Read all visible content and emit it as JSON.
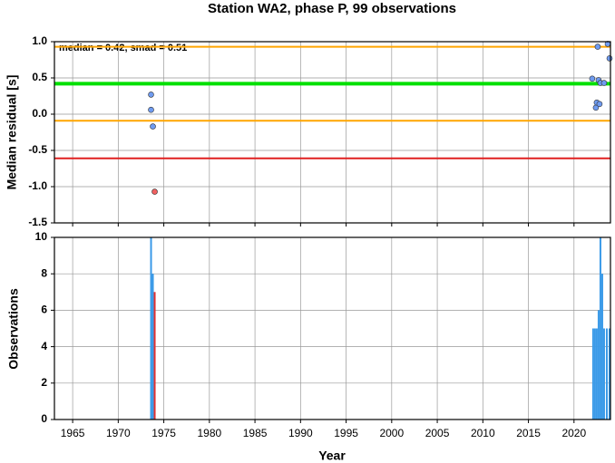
{
  "chart_data": [
    {
      "type": "scatter",
      "title": "Station WA2, phase P, 99 observations",
      "ylabel": "Median residual [s]",
      "annotation": "median = 0.42, smad = 0.51",
      "xlim": [
        1963,
        2024
      ],
      "xticks": [
        1965,
        1970,
        1975,
        1980,
        1985,
        1990,
        1995,
        2000,
        2005,
        2010,
        2015,
        2020
      ],
      "ylim": [
        -1.5,
        1.0
      ],
      "yticks": [
        {
          "value": -1.5,
          "label": "-1.5"
        },
        {
          "value": -1,
          "label": "-1.0"
        },
        {
          "value": -0.5,
          "label": "-0.5"
        },
        {
          "value": 0,
          "label": "0.0"
        },
        {
          "value": 0.5,
          "label": "0.5"
        },
        {
          "value": 1,
          "label": "1.0"
        }
      ],
      "grid": true,
      "hlines": [
        {
          "value": 0.93,
          "color": "#ffa500"
        },
        {
          "value": 0.42,
          "color": "#00e000"
        },
        {
          "value": -0.09,
          "color": "#ffa500"
        },
        {
          "value": -0.61,
          "color": "#e02020"
        }
      ],
      "series": [
        {
          "color": "#6f9bf0",
          "x": [
            1973.6,
            1973.6,
            1973.8,
            2022.0,
            2022.4,
            2022.5,
            2022.6,
            2022.8,
            2022.7,
            2022.9,
            2023.3,
            2023.7,
            2023.9
          ],
          "values": [
            0.27,
            0.06,
            -0.17,
            0.49,
            0.09,
            0.16,
            0.93,
            0.14,
            0.47,
            0.43,
            0.43,
            0.97,
            0.77
          ]
        },
        {
          "color": "#f06060",
          "x": [
            1974.0
          ],
          "values": [
            -1.07
          ]
        }
      ]
    },
    {
      "type": "bar",
      "xlabel": "Year",
      "ylabel": "Observations",
      "xlim": [
        1963,
        2024
      ],
      "xticks": [
        1965,
        1970,
        1975,
        1980,
        1985,
        1990,
        1995,
        2000,
        2005,
        2010,
        2015,
        2020
      ],
      "ylim": [
        0,
        10
      ],
      "yticks": [
        0,
        2,
        4,
        6,
        8,
        10
      ],
      "grid": true,
      "series": [
        {
          "color": "#3a9ae8",
          "x": [
            1973.6,
            1973.8,
            2022.1,
            2022.3,
            2022.5,
            2022.7,
            2022.9,
            2023.1,
            2023.3,
            2023.6,
            2023.9
          ],
          "values": [
            10,
            8,
            5,
            5,
            5,
            6,
            10,
            8,
            5,
            5,
            5
          ]
        },
        {
          "color": "#e03030",
          "x": [
            1974.0
          ],
          "values": [
            7
          ]
        }
      ]
    }
  ]
}
